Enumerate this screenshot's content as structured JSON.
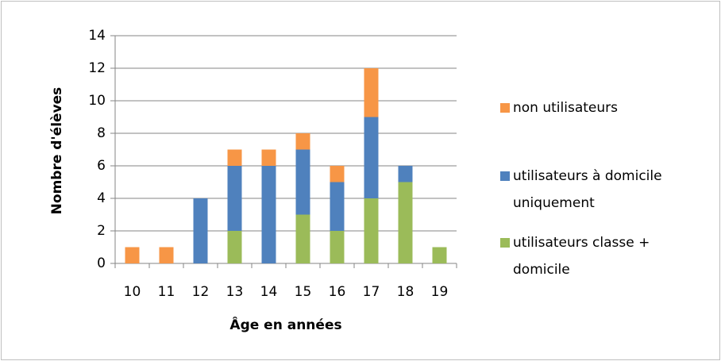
{
  "chart_data": {
    "type": "stacked_bar",
    "y_label": "Nombre d'élèves",
    "x_label": "Âge en années",
    "categories": [
      "10",
      "11",
      "12",
      "13",
      "14",
      "15",
      "16",
      "17",
      "18",
      "19"
    ],
    "series": [
      {
        "name": "utilisateurs classe + domicile",
        "color": "#9bbb59",
        "values": [
          0,
          0,
          0,
          2,
          0,
          3,
          2,
          4,
          5,
          1
        ]
      },
      {
        "name": "utilisateurs à domicile uniquement",
        "color": "#4f81bd",
        "values": [
          0,
          0,
          4,
          4,
          6,
          4,
          3,
          5,
          1,
          0
        ]
      },
      {
        "name": "non utilisateurs",
        "color": "#f79646",
        "values": [
          1,
          1,
          0,
          1,
          1,
          1,
          1,
          3,
          0,
          0
        ]
      }
    ],
    "ylim": [
      0,
      14
    ],
    "yticks": [
      0,
      2,
      4,
      6,
      8,
      10,
      12,
      14
    ],
    "grid": true,
    "legend": "right"
  }
}
